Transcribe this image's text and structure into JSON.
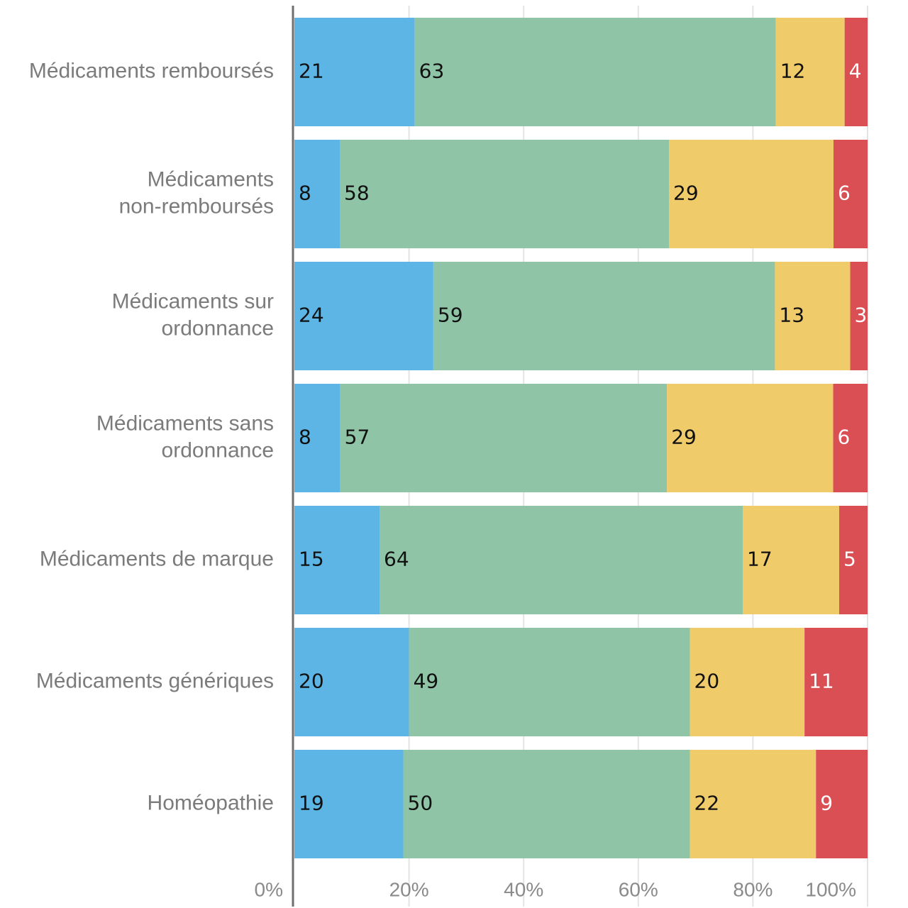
{
  "chart_data": {
    "type": "bar",
    "orientation": "horizontal",
    "stacked": true,
    "normalized": true,
    "title": "",
    "xlabel": "",
    "ylabel": "",
    "xlim": [
      0,
      100
    ],
    "x_ticks": [
      0,
      20,
      40,
      60,
      80,
      100
    ],
    "x_tick_labels": [
      "0%",
      "20%",
      "40%",
      "60%",
      "80%",
      "100%"
    ],
    "grid": true,
    "legend": "none",
    "categories": [
      [
        "Médicaments remboursés"
      ],
      [
        "Médicaments",
        "non-remboursés"
      ],
      [
        "Médicaments sur",
        "ordonnance"
      ],
      [
        "Médicaments sans",
        "ordonnance"
      ],
      [
        "Médicaments de marque"
      ],
      [
        "Médicaments génériques"
      ],
      [
        "Homéopathie"
      ]
    ],
    "series": [
      {
        "color": "#5db5e5",
        "label_color": "#111111",
        "values": [
          21,
          8,
          24,
          8,
          15,
          20,
          19
        ]
      },
      {
        "color": "#8fc4a7",
        "label_color": "#111111",
        "values": [
          63,
          58,
          59,
          57,
          64,
          49,
          50
        ]
      },
      {
        "color": "#f0cb6a",
        "label_color": "#111111",
        "values": [
          12,
          29,
          13,
          29,
          17,
          20,
          22
        ]
      },
      {
        "color": "#d94f53",
        "label_color": "#ffffff",
        "values": [
          4,
          6,
          3,
          6,
          5,
          11,
          9
        ]
      }
    ]
  }
}
